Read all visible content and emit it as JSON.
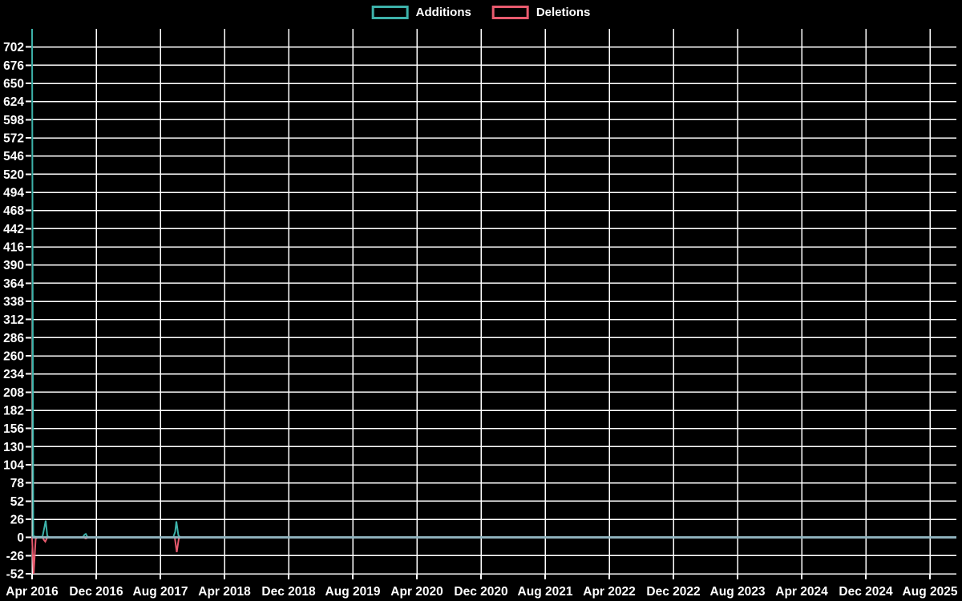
{
  "legend": {
    "items": [
      {
        "label": "Additions",
        "color": "#3db2aa"
      },
      {
        "label": "Deletions",
        "color": "#e85a6e"
      }
    ]
  },
  "chart_data": {
    "type": "line",
    "title": "",
    "xlabel": "",
    "ylabel": "",
    "background_color": "#000000",
    "grid": true,
    "grid_color": "#ffffff",
    "text_color": "#ffffff",
    "zero_line_color": "#8fb2bd",
    "legend_position": "top-center",
    "y_range": [
      -52,
      728
    ],
    "y_tick_step": 26,
    "y_ticks": [
      702,
      676,
      650,
      624,
      598,
      572,
      546,
      520,
      494,
      468,
      442,
      416,
      390,
      364,
      338,
      312,
      286,
      260,
      234,
      208,
      182,
      156,
      130,
      104,
      78,
      52,
      26,
      0,
      -26,
      -52
    ],
    "x_range_months": [
      0,
      115.3
    ],
    "x_ticks": [
      {
        "label": "Apr 2016",
        "month": 0
      },
      {
        "label": "Dec 2016",
        "month": 8
      },
      {
        "label": "Aug 2017",
        "month": 16
      },
      {
        "label": "Apr 2018",
        "month": 24
      },
      {
        "label": "Dec 2018",
        "month": 32
      },
      {
        "label": "Aug 2019",
        "month": 40
      },
      {
        "label": "Apr 2020",
        "month": 48
      },
      {
        "label": "Dec 2020",
        "month": 56
      },
      {
        "label": "Aug 2021",
        "month": 64
      },
      {
        "label": "Apr 2022",
        "month": 72
      },
      {
        "label": "Dec 2022",
        "month": 80
      },
      {
        "label": "Aug 2023",
        "month": 88
      },
      {
        "label": "Apr 2024",
        "month": 96
      },
      {
        "label": "Dec 2024",
        "month": 104
      },
      {
        "label": "Aug 2025",
        "month": 112
      }
    ],
    "series": [
      {
        "name": "Additions",
        "color": "#3db2aa",
        "points": [
          [
            0,
            728
          ],
          [
            0.15,
            2
          ],
          [
            0.45,
            1
          ],
          [
            1.3,
            1
          ],
          [
            1.55,
            15
          ],
          [
            1.7,
            24
          ],
          [
            1.9,
            2
          ],
          [
            2.2,
            0
          ],
          [
            6.3,
            0
          ],
          [
            6.55,
            4
          ],
          [
            6.7,
            5
          ],
          [
            6.95,
            0
          ],
          [
            17.6,
            0
          ],
          [
            17.85,
            8
          ],
          [
            18.0,
            23
          ],
          [
            18.25,
            3
          ],
          [
            18.5,
            0
          ],
          [
            115.3,
            0
          ]
        ]
      },
      {
        "name": "Deletions",
        "color": "#e85a6e",
        "points": [
          [
            0,
            0
          ],
          [
            0.2,
            -52
          ],
          [
            0.45,
            -2
          ],
          [
            0.7,
            0
          ],
          [
            1.3,
            0
          ],
          [
            1.5,
            -4
          ],
          [
            1.65,
            -6
          ],
          [
            1.9,
            0
          ],
          [
            6.4,
            0
          ],
          [
            6.7,
            -1.5
          ],
          [
            7.0,
            0
          ],
          [
            17.8,
            0
          ],
          [
            18.05,
            -21
          ],
          [
            18.3,
            -2
          ],
          [
            18.5,
            0
          ],
          [
            115.3,
            0
          ]
        ]
      }
    ]
  }
}
